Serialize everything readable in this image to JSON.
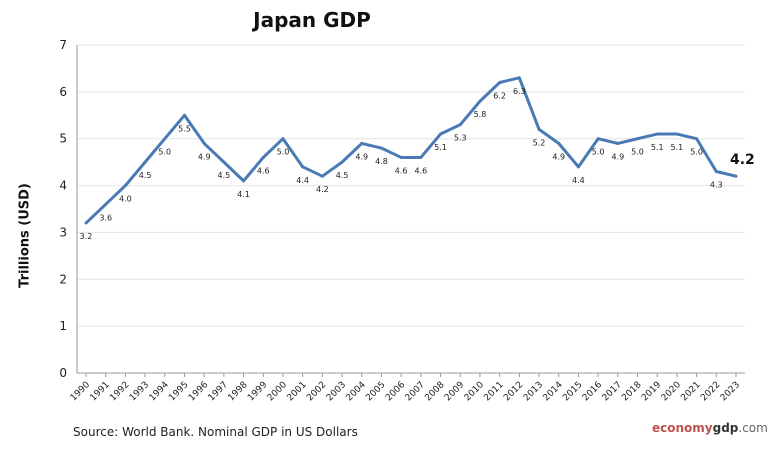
{
  "chart_data": {
    "type": "line",
    "title": "Japan GDP",
    "ylabel": "Trillions (USD)",
    "xlabel": "",
    "ylim": [
      0,
      7
    ],
    "yticks": [
      "0",
      "1",
      "2",
      "3",
      "4",
      "5",
      "6",
      "7"
    ],
    "grid": true,
    "legend": "none",
    "line_color": "#4a7ab5",
    "categories": [
      "1990",
      "1991",
      "1992",
      "1993",
      "1994",
      "1995",
      "1996",
      "1997",
      "1998",
      "1999",
      "2000",
      "2001",
      "2002",
      "2003",
      "2004",
      "2005",
      "2006",
      "2007",
      "2008",
      "2009",
      "2010",
      "2011",
      "2012",
      "2013",
      "2014",
      "2015",
      "2016",
      "2017",
      "2018",
      "2019",
      "2020",
      "2021",
      "2022",
      "2023"
    ],
    "values": [
      3.2,
      3.6,
      4.0,
      4.5,
      5.0,
      5.5,
      4.9,
      4.5,
      4.1,
      4.6,
      5.0,
      4.4,
      4.2,
      4.5,
      4.9,
      4.8,
      4.6,
      4.6,
      5.1,
      5.3,
      5.8,
      6.2,
      6.3,
      5.2,
      4.9,
      4.4,
      5.0,
      4.9,
      5.0,
      5.1,
      5.1,
      5.0,
      4.3,
      4.2
    ],
    "labels": [
      "3.2",
      "3.6",
      "4.0",
      "4.5",
      "5.0",
      "5.5",
      "4.9",
      "4.5",
      "4.1",
      "4.6",
      "5.0",
      "4.4",
      "4.2",
      "4.5",
      "4.9",
      "4.8",
      "4.6",
      "4.6",
      "5.1",
      "5.3",
      "5.8",
      "6.2",
      "6.3",
      "5.2",
      "4.9",
      "4.4",
      "5.0",
      "4.9",
      "5.0",
      "5.1",
      "5.1",
      "5.0",
      "4.3",
      "4.2"
    ]
  },
  "footer": {
    "source": "Source: World Bank.  Nominal GDP  in US Dollars",
    "brand_a": "economy",
    "brand_b": "gdp",
    "brand_c": ".com"
  }
}
